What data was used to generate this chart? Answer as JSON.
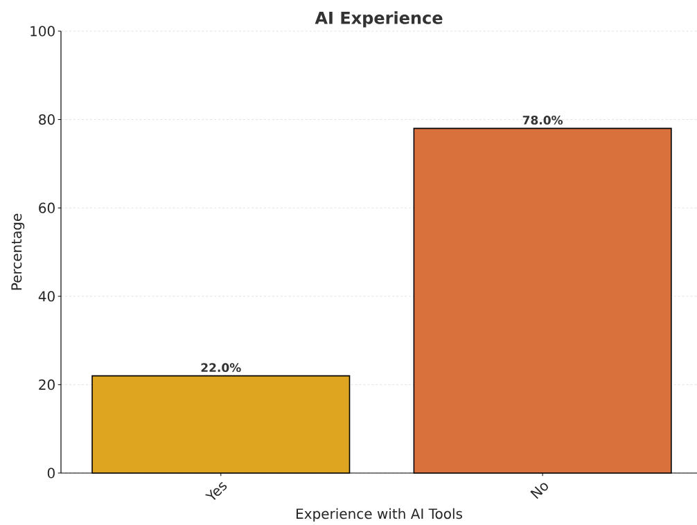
{
  "chart_data": {
    "type": "bar",
    "title": "AI Experience",
    "xlabel": "Experience with AI Tools",
    "ylabel": "Percentage",
    "categories": [
      "Yes",
      "No"
    ],
    "values": [
      22.0,
      78.0
    ],
    "colors": [
      "#dea521",
      "#d9713c"
    ],
    "value_labels": [
      "22.0%",
      "78.0%"
    ],
    "ylim": [
      0,
      100
    ],
    "yticks": [
      0,
      20,
      40,
      60,
      80,
      100
    ],
    "grid": "y"
  }
}
